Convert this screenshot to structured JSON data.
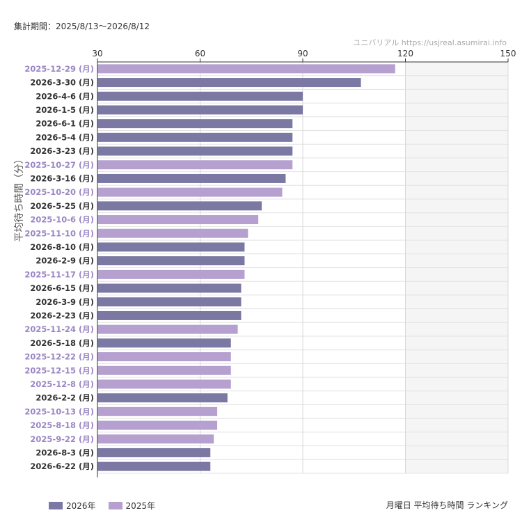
{
  "header": {
    "period": "集計期間：2025/8/13〜2026/8/12",
    "source": "ユニバリアル  https://usjreal.asumirai.info"
  },
  "footer": {
    "title": "月曜日 平均待ち時間 ランキング"
  },
  "colors": {
    "year_2026": "#7b78a3",
    "year_2025": "#b5a0d0",
    "label_2026": "#333333",
    "label_2025": "#9b87c4",
    "shade": "#f5f5f5",
    "grid": "#e3e3e3"
  },
  "chart_data": {
    "type": "bar",
    "orientation": "horizontal",
    "ylabel": "平均待ち時間（分）",
    "xlim": [
      30,
      150
    ],
    "xticks": [
      30,
      60,
      90,
      120,
      150
    ],
    "shaded_range": [
      120,
      150
    ],
    "legend_position": "bottom-left",
    "legend": [
      {
        "name": "2026年",
        "key": "year_2026"
      },
      {
        "name": "2025年",
        "key": "year_2025"
      }
    ],
    "categories": [
      "2025-12-29 (月)",
      "2026-3-30 (月)",
      "2026-4-6 (月)",
      "2026-1-5 (月)",
      "2026-6-1 (月)",
      "2026-5-4 (月)",
      "2026-3-23 (月)",
      "2025-10-27 (月)",
      "2026-3-16 (月)",
      "2025-10-20 (月)",
      "2026-5-25 (月)",
      "2025-10-6 (月)",
      "2025-11-10 (月)",
      "2026-8-10 (月)",
      "2026-2-9 (月)",
      "2025-11-17 (月)",
      "2026-6-15 (月)",
      "2026-3-9 (月)",
      "2026-2-23 (月)",
      "2025-11-24 (月)",
      "2026-5-18 (月)",
      "2025-12-22 (月)",
      "2025-12-15 (月)",
      "2025-12-8 (月)",
      "2026-2-2 (月)",
      "2025-10-13 (月)",
      "2025-8-18 (月)",
      "2025-9-22 (月)",
      "2026-8-3 (月)",
      "2026-6-22 (月)"
    ],
    "values": [
      117,
      107,
      90,
      90,
      87,
      87,
      87,
      87,
      85,
      84,
      78,
      77,
      74,
      73,
      73,
      73,
      72,
      72,
      72,
      71,
      69,
      69,
      69,
      69,
      68,
      65,
      65,
      64,
      63,
      63
    ],
    "years": [
      "2025",
      "2026",
      "2026",
      "2026",
      "2026",
      "2026",
      "2026",
      "2025",
      "2026",
      "2025",
      "2026",
      "2025",
      "2025",
      "2026",
      "2026",
      "2025",
      "2026",
      "2026",
      "2026",
      "2025",
      "2026",
      "2025",
      "2025",
      "2025",
      "2026",
      "2025",
      "2025",
      "2025",
      "2026",
      "2026"
    ]
  }
}
